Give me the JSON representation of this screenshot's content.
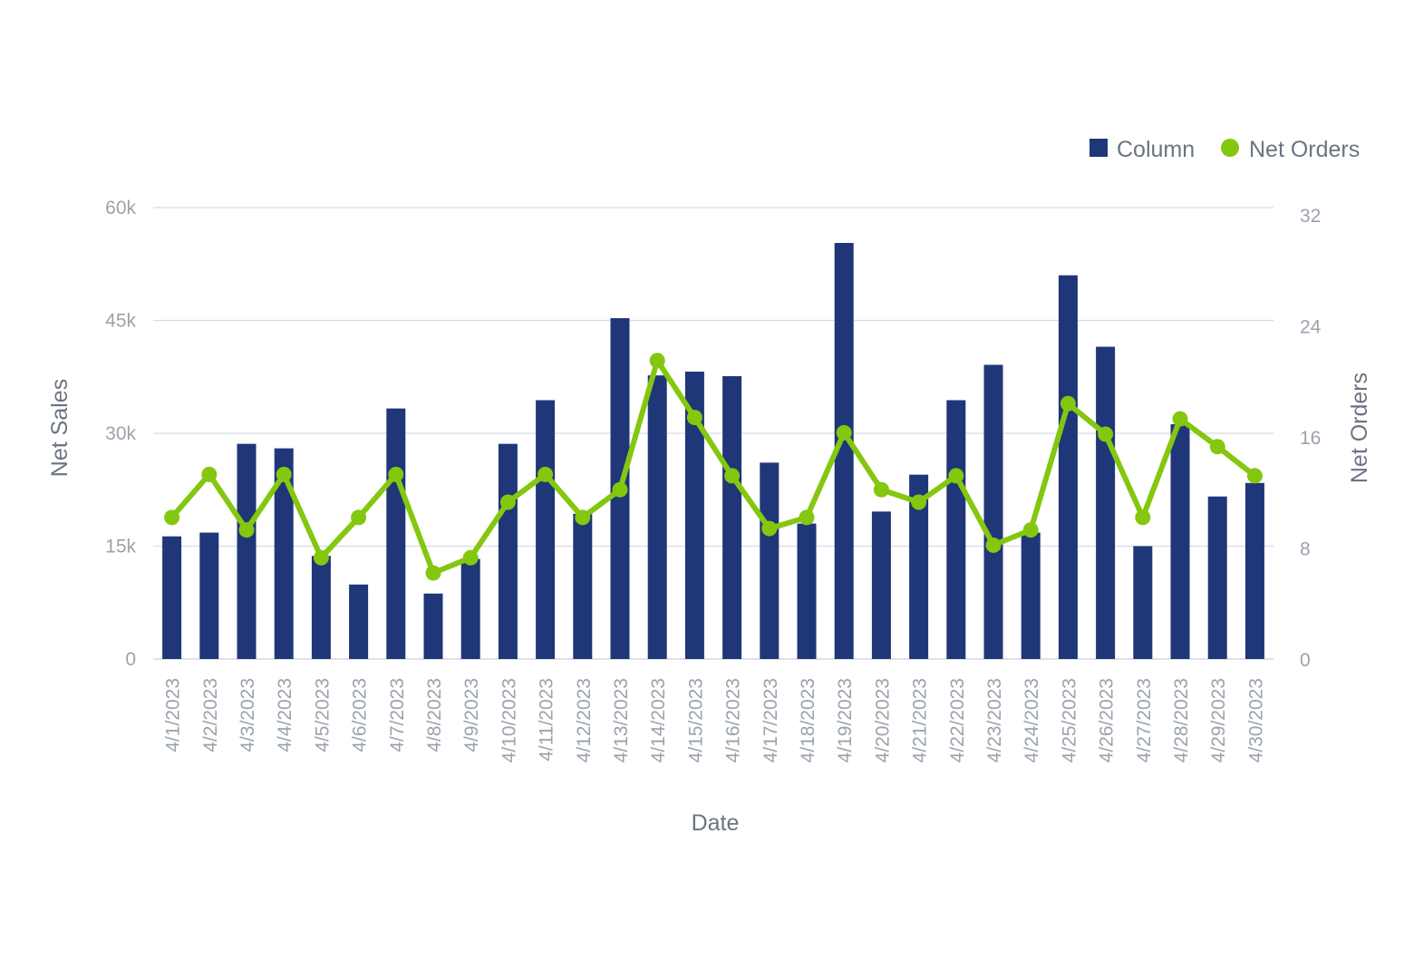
{
  "chart_data": {
    "type": "bar+line",
    "x_title": "Date",
    "y_left_title": "Net Sales",
    "y_right_title": "Net Orders",
    "y_left_ticks": [
      "0",
      "15k",
      "30k",
      "45k",
      "60k"
    ],
    "y_right_ticks": [
      "0",
      "8",
      "16",
      "24",
      "32"
    ],
    "y_left_range": [
      0,
      60000
    ],
    "y_right_range": [
      0,
      32
    ],
    "legend": [
      {
        "name": "Column",
        "color": "#1f3678",
        "shape": "square"
      },
      {
        "name": "Net Orders",
        "color": "#84c70f",
        "shape": "circle"
      }
    ],
    "categories": [
      "4/1/2023",
      "4/2/2023",
      "4/3/2023",
      "4/4/2023",
      "4/5/2023",
      "4/6/2023",
      "4/7/2023",
      "4/8/2023",
      "4/9/2023",
      "4/10/2023",
      "4/11/2023",
      "4/12/2023",
      "4/13/2023",
      "4/14/2023",
      "4/15/2023",
      "4/16/2023",
      "4/17/2023",
      "4/18/2023",
      "4/19/2023",
      "4/20/2023",
      "4/21/2023",
      "4/22/2023",
      "4/23/2023",
      "4/24/2023",
      "4/25/2023",
      "4/26/2023",
      "4/27/2023",
      "4/28/2023",
      "4/29/2023",
      "4/30/2023"
    ],
    "series": [
      {
        "name": "Column",
        "type": "bar",
        "axis": "left",
        "color": "#1f3678",
        "values": [
          16300,
          16800,
          28600,
          28000,
          13700,
          9900,
          33300,
          8700,
          13300,
          28600,
          34400,
          19300,
          45300,
          37700,
          38200,
          37600,
          26100,
          18000,
          55300,
          19600,
          24500,
          34400,
          39100,
          16800,
          51000,
          41500,
          15000,
          31200,
          21600,
          23400
        ]
      },
      {
        "name": "Net Orders",
        "type": "line",
        "axis": "right",
        "color": "#84c70f",
        "values": [
          10.2,
          13.3,
          9.3,
          13.3,
          7.3,
          10.2,
          13.3,
          6.2,
          7.3,
          11.3,
          13.3,
          10.2,
          12.2,
          21.5,
          17.4,
          13.2,
          9.4,
          10.2,
          16.3,
          12.2,
          11.3,
          13.2,
          8.2,
          9.3,
          18.4,
          16.2,
          10.2,
          17.3,
          15.3,
          13.2
        ]
      }
    ]
  }
}
